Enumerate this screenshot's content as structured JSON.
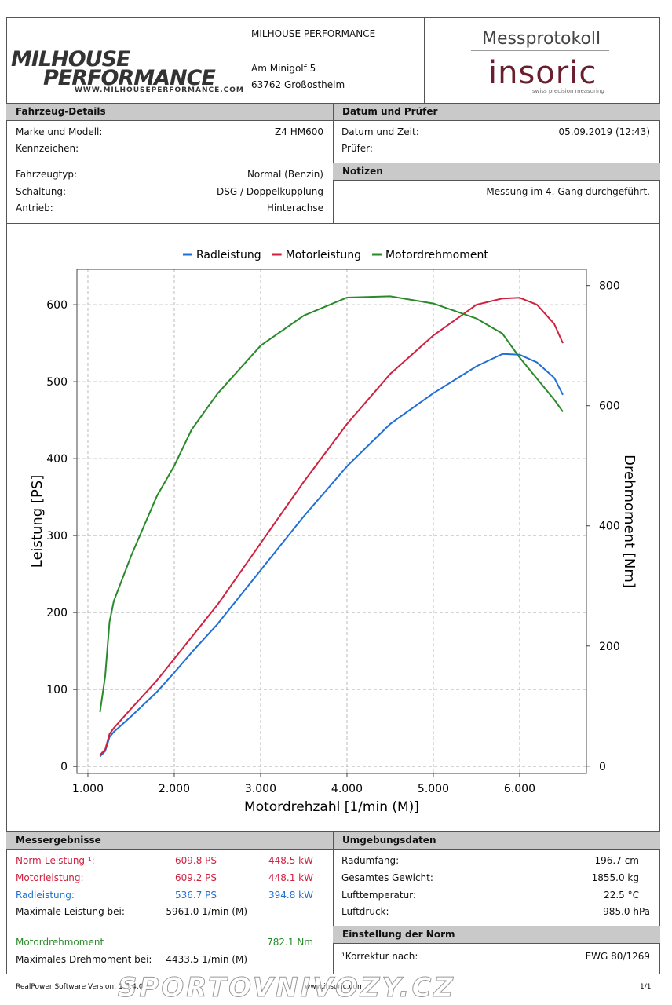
{
  "header": {
    "logo_top": "MILHOUSE",
    "logo_bottom": "PERFORMANCE",
    "logo_url": "WWW.MILHOUSEPERFORMANCE.COM",
    "company": "MILHOUSE PERFORMANCE",
    "street": "Am Minigolf 5",
    "city": "63762 Großostheim",
    "doc_title": "Messprotokoll",
    "brand": "insoric",
    "brand_tagline": "swiss precision measuring"
  },
  "vehicle": {
    "title": "Fahrzeug-Details",
    "rows": [
      [
        "Marke und Modell:",
        "Z4 HM600"
      ],
      [
        "Kennzeichen:"
      ],
      [
        "Fahrzeugtyp:",
        "Normal (Benzin)"
      ],
      [
        "Schaltung:",
        "DSG / Doppelkupplung"
      ],
      [
        "Antrieb:",
        "Hinterachse"
      ]
    ]
  },
  "date": {
    "title": "Datum und Prüfer",
    "rows": [
      [
        "Datum und Zeit:",
        "05.09.2019 (12:43)"
      ],
      [
        "Prüfer:"
      ]
    ]
  },
  "notes": {
    "title": "Notizen",
    "text": "Messung im 4. Gang durchgeführt."
  },
  "chart_data": {
    "type": "line",
    "x_label": "Motordrehzahl [1/min (M)]",
    "y_label": "Leistung [PS]",
    "y2_label": "Drehmoment [Nm]",
    "x": [
      1140,
      1200,
      1250,
      1300,
      1500,
      1800,
      2000,
      2200,
      2500,
      3000,
      3500,
      4000,
      4500,
      5000,
      5500,
      5800,
      6000,
      6200,
      6400,
      6500
    ],
    "series": [
      {
        "name": "Radleistung",
        "color": "#1f6fd6",
        "values": [
          13,
          20,
          38,
          45,
          65,
          97,
          122,
          148,
          185,
          255,
          325,
          390,
          445,
          485,
          520,
          536,
          535,
          525,
          505,
          483
        ]
      },
      {
        "name": "Motorleistung",
        "color": "#d0213f",
        "values": [
          15,
          22,
          42,
          50,
          75,
          112,
          140,
          168,
          210,
          290,
          370,
          445,
          510,
          560,
          600,
          608,
          609,
          600,
          575,
          550
        ]
      },
      {
        "name": "Motordrehmoment",
        "color": "#2a8a2a",
        "axis": "y2",
        "values": [
          90,
          150,
          240,
          275,
          350,
          450,
          500,
          560,
          620,
          700,
          750,
          780,
          782,
          770,
          745,
          720,
          680,
          645,
          610,
          590
        ]
      }
    ],
    "xlim": [
      873,
      6773
    ],
    "ylim": [
      -9,
      646
    ],
    "y2lim": [
      -12,
      827
    ],
    "xticks": [
      {
        "value": 1000,
        "label": "1.000"
      },
      {
        "value": 2000,
        "label": "2.000"
      },
      {
        "value": 3000,
        "label": "3.000"
      },
      {
        "value": 4000,
        "label": "4.000"
      },
      {
        "value": 5000,
        "label": "5.000"
      },
      {
        "value": 6000,
        "label": "6.000"
      }
    ],
    "yticks": [
      0,
      100,
      200,
      300,
      400,
      500,
      600
    ],
    "y2ticks": [
      0,
      200,
      400,
      600,
      800
    ],
    "grid": true,
    "legend": "top"
  },
  "results": {
    "title": "Messergebnisse",
    "rows": [
      [
        "Norm-Leistung ¹:",
        "609.8 PS",
        "448.5 kW"
      ],
      [
        "Motorleistung:",
        "609.2 PS",
        "448.1 kW"
      ],
      [
        "Radleistung:",
        "536.7 PS",
        "394.8 kW"
      ],
      [
        "Maximale Leistung bei:",
        "5961.0 1/min (M)"
      ],
      [
        "Motordrehmoment",
        "782.1 Nm"
      ],
      [
        "Maximales Drehmoment bei:",
        "4433.5 1/min (M)"
      ]
    ]
  },
  "environment": {
    "title": "Umgebungsdaten",
    "rows": [
      [
        "Radumfang:",
        "196.7 cm"
      ],
      [
        "Gesamtes Gewicht:",
        "1855.0 kg"
      ],
      [
        "Lufttemperatur:",
        "22.5 °C"
      ],
      [
        "Luftdruck:",
        "985.0 hPa"
      ]
    ]
  },
  "norm": {
    "title": "Einstellung der Norm",
    "rows": [
      [
        "¹Korrektur nach:",
        "EWG 80/1269"
      ]
    ]
  },
  "footer": {
    "software": "RealPower Software Version: 1.5.4.0",
    "web": "www.insoric.com",
    "page": "1/1",
    "watermark": "SPORTOVNIVOZY.CZ"
  }
}
